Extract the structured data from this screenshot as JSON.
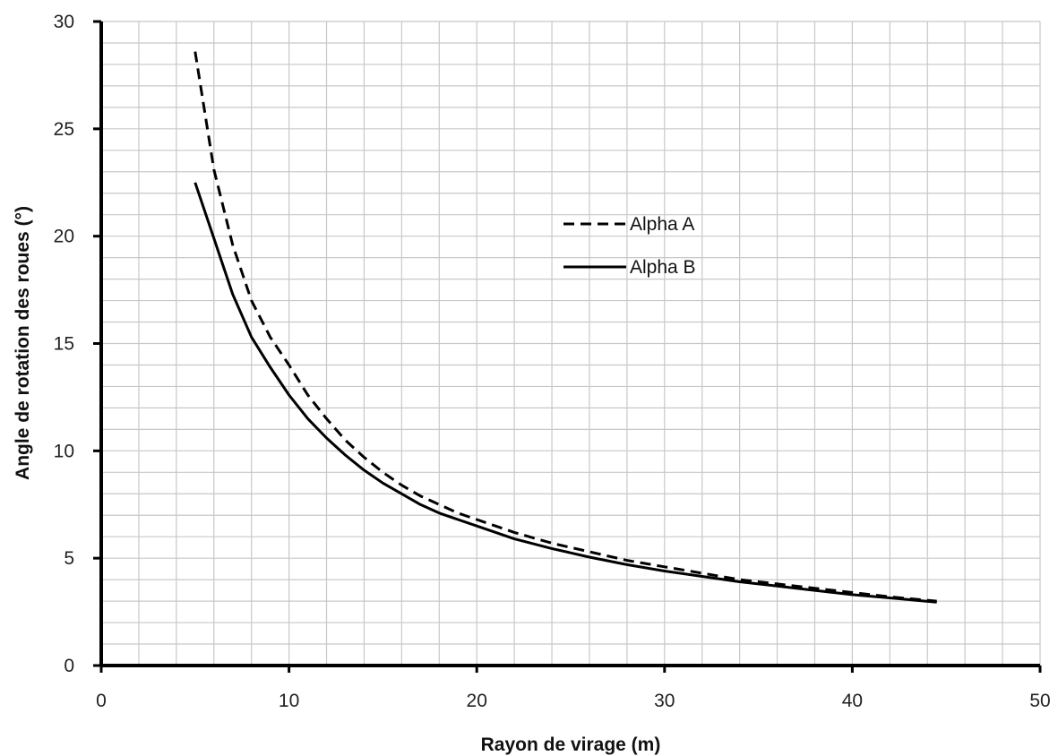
{
  "chart_data": {
    "type": "line",
    "title": "",
    "xlabel": "Rayon de virage (m)",
    "ylabel": "Angle de rotation des roues (°)",
    "xlim": [
      0,
      50
    ],
    "ylim": [
      0,
      30
    ],
    "x_ticks": [
      "0",
      "10",
      "20",
      "30",
      "40",
      "50"
    ],
    "y_ticks": [
      "0",
      "5",
      "10",
      "15",
      "20",
      "25",
      "30"
    ],
    "grid": true,
    "legend_position": "center-right (inside plot)",
    "x": [
      5,
      6,
      7,
      8,
      9,
      10,
      11,
      12,
      13,
      14,
      15,
      16,
      17,
      18,
      19,
      20,
      22,
      24,
      26,
      28,
      30,
      32,
      34,
      36,
      38,
      40,
      42,
      44.5
    ],
    "series": [
      {
        "name": "Alpha A",
        "style": "dashed",
        "color": "#000000",
        "values": [
          28.6,
          23.1,
          19.6,
          17.0,
          15.3,
          14.0,
          12.6,
          11.5,
          10.5,
          9.7,
          9.0,
          8.4,
          7.9,
          7.5,
          7.1,
          6.8,
          6.2,
          5.7,
          5.3,
          4.9,
          4.6,
          4.3,
          4.0,
          3.8,
          3.6,
          3.4,
          3.2,
          3.0
        ]
      },
      {
        "name": "Alpha B",
        "style": "solid",
        "color": "#000000",
        "values": [
          22.5,
          19.9,
          17.3,
          15.3,
          13.9,
          12.6,
          11.5,
          10.6,
          9.8,
          9.1,
          8.5,
          8.0,
          7.5,
          7.1,
          6.8,
          6.5,
          5.9,
          5.45,
          5.05,
          4.7,
          4.4,
          4.15,
          3.9,
          3.7,
          3.5,
          3.3,
          3.15,
          2.95
        ]
      }
    ]
  }
}
